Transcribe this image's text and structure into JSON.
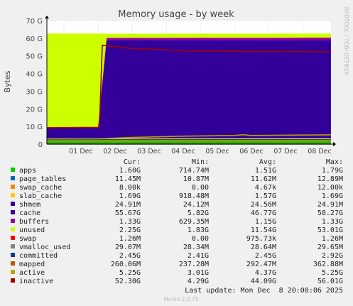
{
  "chart_data": {
    "type": "area",
    "title": "Memory usage - by week",
    "ylabel": "Bytes",
    "side_label": "RRDTOOL / TOBI OETIKER",
    "x_ticks": [
      "01 Dec",
      "02 Dec",
      "03 Dec",
      "04 Dec",
      "05 Dec",
      "06 Dec",
      "07 Dec",
      "08 Dec"
    ],
    "y_ticks": [
      "0",
      "10 G",
      "20 G",
      "30 G",
      "40 G",
      "50 G",
      "60 G",
      "70 G"
    ],
    "ylim": [
      0,
      70
    ],
    "y_unit": "G",
    "grid": true,
    "x_range": [
      "2025-11-30T12:00",
      "2025-12-08T20:00"
    ],
    "stack_order": [
      "apps",
      "page_tables",
      "swap_cache",
      "slab_cache",
      "shmem",
      "cache",
      "buffers",
      "unused",
      "swap"
    ],
    "line_order": [
      "vmalloc_used",
      "committed",
      "mapped",
      "active",
      "inactive"
    ],
    "series": [
      {
        "name": "apps",
        "color": "#00cc00",
        "points": [
          [
            "2025-11-30T12:00",
            1.6
          ],
          [
            "2025-12-02T02:00",
            1.6
          ],
          [
            "2025-12-08T20:00",
            1.6
          ]
        ]
      },
      {
        "name": "page_tables",
        "color": "#0066b3",
        "points": [
          [
            "2025-11-30T12:00",
            0.012
          ],
          [
            "2025-12-08T20:00",
            0.012
          ]
        ]
      },
      {
        "name": "swap_cache",
        "color": "#ff8000",
        "points": [
          [
            "2025-11-30T12:00",
            0
          ],
          [
            "2025-12-08T20:00",
            0
          ]
        ]
      },
      {
        "name": "slab_cache",
        "color": "#ffcc00",
        "points": [
          [
            "2025-11-30T12:00",
            1.6
          ],
          [
            "2025-12-08T20:00",
            1.7
          ]
        ]
      },
      {
        "name": "shmem",
        "color": "#330099",
        "points": [
          [
            "2025-11-30T12:00",
            0.025
          ],
          [
            "2025-12-08T20:00",
            0.025
          ]
        ]
      },
      {
        "name": "cache",
        "color": "#330099",
        "points": [
          [
            "2025-11-30T12:00",
            5.8
          ],
          [
            "2025-12-02T01:00",
            5.8
          ],
          [
            "2025-12-02T03:00",
            55.7
          ],
          [
            "2025-12-08T20:00",
            55.7
          ]
        ]
      },
      {
        "name": "buffers",
        "color": "#990099",
        "points": [
          [
            "2025-11-30T12:00",
            0.6
          ],
          [
            "2025-12-02T02:00",
            0.6
          ],
          [
            "2025-12-02T03:00",
            1.3
          ],
          [
            "2025-12-08T20:00",
            1.3
          ]
        ]
      },
      {
        "name": "unused",
        "color": "#ccff00",
        "points": [
          [
            "2025-11-30T12:00",
            53.0
          ],
          [
            "2025-12-02T01:00",
            53.0
          ],
          [
            "2025-12-02T03:00",
            2.3
          ],
          [
            "2025-12-08T20:00",
            2.3
          ]
        ]
      },
      {
        "name": "swap",
        "color": "#ff0000",
        "points": [
          [
            "2025-11-30T12:00",
            0
          ],
          [
            "2025-12-08T20:00",
            0
          ]
        ]
      },
      {
        "name": "vmalloc_used",
        "color": "#808080",
        "points": [
          [
            "2025-11-30T12:00",
            0.03
          ],
          [
            "2025-12-08T20:00",
            0.03
          ]
        ]
      },
      {
        "name": "committed",
        "color": "#004080",
        "points": [
          [
            "2025-11-30T12:00",
            2.4
          ],
          [
            "2025-12-08T20:00",
            2.45
          ]
        ]
      },
      {
        "name": "mapped",
        "color": "#ad5c00",
        "points": [
          [
            "2025-11-30T12:00",
            0.24
          ],
          [
            "2025-12-08T20:00",
            0.26
          ]
        ]
      },
      {
        "name": "active",
        "color": "#b8a300",
        "points": [
          [
            "2025-11-30T12:00",
            3.0
          ],
          [
            "2025-12-02T00:00",
            3.0
          ],
          [
            "2025-12-03T00:00",
            3.8
          ],
          [
            "2025-12-04T12:00",
            4.5
          ],
          [
            "2025-12-06T00:00",
            4.9
          ],
          [
            "2025-12-06T06:00",
            5.3
          ],
          [
            "2025-12-06T12:00",
            4.9
          ],
          [
            "2025-12-08T20:00",
            5.25
          ]
        ]
      },
      {
        "name": "inactive",
        "color": "#a00000",
        "points": [
          [
            "2025-11-30T12:00",
            9.3
          ],
          [
            "2025-12-02T01:00",
            9.5
          ],
          [
            "2025-12-02T03:00",
            56.0
          ],
          [
            "2025-12-03T00:00",
            54.2
          ],
          [
            "2025-12-04T00:00",
            53.5
          ],
          [
            "2025-12-04T12:00",
            52.8
          ],
          [
            "2025-12-08T20:00",
            52.3
          ]
        ]
      }
    ]
  },
  "legend": {
    "headers": {
      "cur": "Cur:",
      "min": "Min:",
      "avg": "Avg:",
      "max": "Max:"
    },
    "rows": [
      {
        "name": "apps",
        "color": "#00cc00",
        "cur": "1.60G",
        "min": "714.74M",
        "avg": "1.51G",
        "max": "1.79G"
      },
      {
        "name": "page_tables",
        "color": "#0066b3",
        "cur": "11.45M",
        "min": "10.87M",
        "avg": "11.62M",
        "max": "12.89M"
      },
      {
        "name": "swap_cache",
        "color": "#ff8000",
        "cur": "8.00k",
        "min": "0.00",
        "avg": "4.67k",
        "max": "12.00k"
      },
      {
        "name": "slab_cache",
        "color": "#ffcc00",
        "cur": "1.69G",
        "min": "918.48M",
        "avg": "1.57G",
        "max": "1.69G"
      },
      {
        "name": "shmem",
        "color": "#330099",
        "cur": "24.91M",
        "min": "24.12M",
        "avg": "24.56M",
        "max": "24.91M"
      },
      {
        "name": "cache",
        "color": "#330099",
        "cur": "55.67G",
        "min": "5.82G",
        "avg": "46.77G",
        "max": "58.27G"
      },
      {
        "name": "buffers",
        "color": "#990099",
        "cur": "1.33G",
        "min": "629.35M",
        "avg": "1.15G",
        "max": "1.33G"
      },
      {
        "name": "unused",
        "color": "#ccff00",
        "cur": "2.25G",
        "min": "1.83G",
        "avg": "11.54G",
        "max": "53.01G"
      },
      {
        "name": "swap",
        "color": "#ff0000",
        "cur": "1.26M",
        "min": "0.00",
        "avg": "975.73k",
        "max": "1.26M"
      },
      {
        "name": "vmalloc_used",
        "color": "#808080",
        "cur": "29.07M",
        "min": "28.34M",
        "avg": "28.64M",
        "max": "29.65M"
      },
      {
        "name": "committed",
        "color": "#004080",
        "cur": "2.45G",
        "min": "2.41G",
        "avg": "2.45G",
        "max": "2.92G"
      },
      {
        "name": "mapped",
        "color": "#ad5c00",
        "cur": "260.06M",
        "min": "237.28M",
        "avg": "292.47M",
        "max": "362.88M"
      },
      {
        "name": "active",
        "color": "#b8a300",
        "cur": "5.25G",
        "min": "3.01G",
        "avg": "4.37G",
        "max": "5.25G"
      },
      {
        "name": "inactive",
        "color": "#a00000",
        "cur": "52.30G",
        "min": "4.29G",
        "avg": "44.09G",
        "max": "56.01G"
      }
    ]
  },
  "last_update": "Last update: Mon Dec  8 20:00:06 2025",
  "footer": "Munin 2.0.75"
}
